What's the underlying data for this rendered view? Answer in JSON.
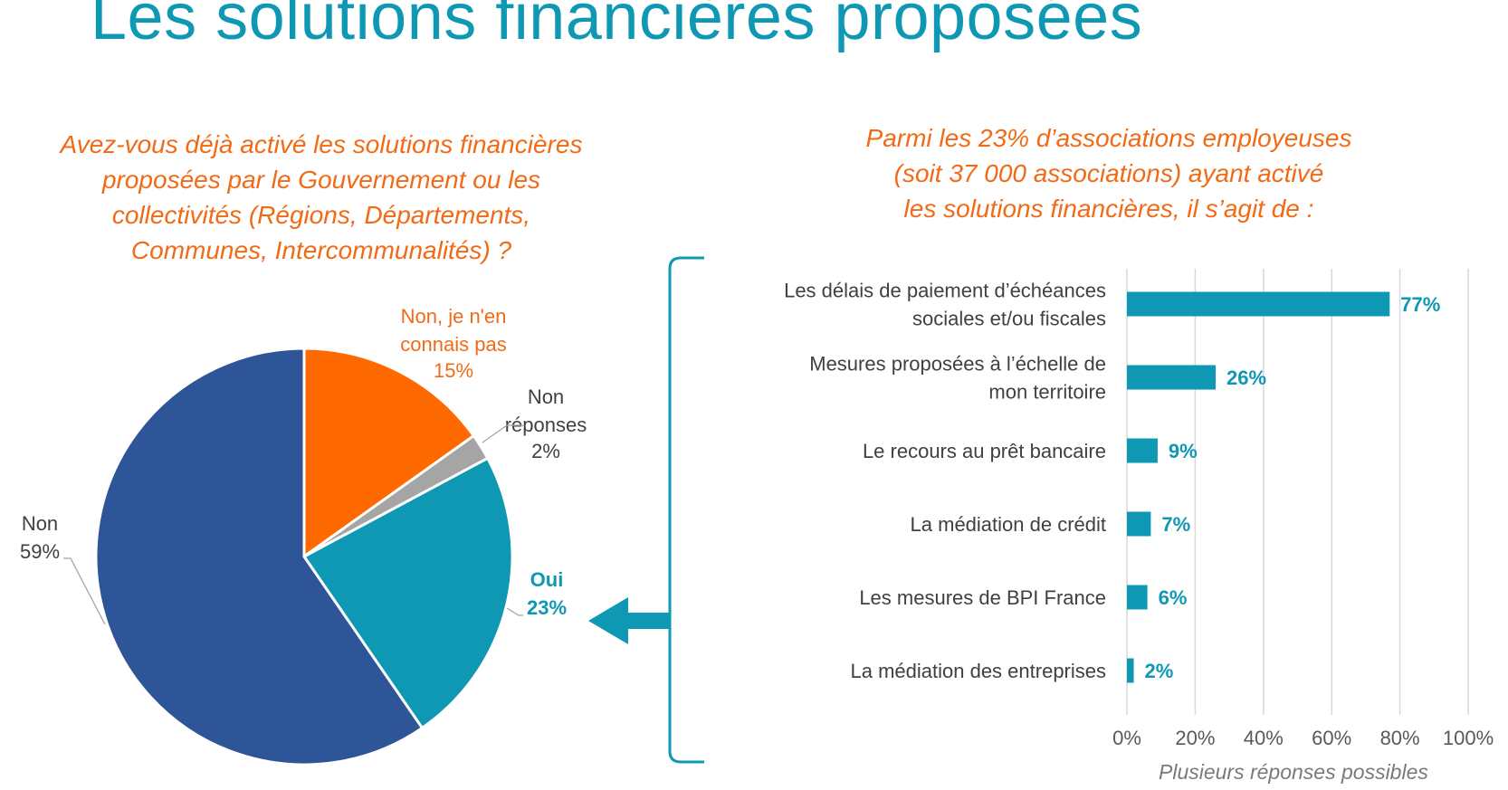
{
  "page": {
    "title": "Les solutions financières proposées",
    "left_question": [
      "Avez-vous déjà activé les solutions financières",
      "proposées par le Gouvernement ou les",
      "collectivités (Régions, Départements,",
      "Communes, Intercommunalités) ?"
    ],
    "right_question": [
      "Parmi les 23% d’associations employeuses",
      "(soit 37 000 associations) ayant activé",
      "les solutions financières, il s’agit de :"
    ],
    "note": "Plusieurs réponses possibles"
  },
  "colors": {
    "title": "#0e98b4",
    "question": "#f26a16",
    "teal": "#0e98b4",
    "navy": "#2e5597",
    "orange": "#ff6a00",
    "gray": "#a5a5a5",
    "text": "#404040"
  },
  "chart_data": [
    {
      "type": "pie",
      "slices": [
        {
          "name": "Non, je n'en connais pas",
          "label_lines": [
            "Non, je n'en",
            "connais pas"
          ],
          "pct_label": "15%",
          "value": 15,
          "color": "#ff6a00"
        },
        {
          "name": "Non réponses",
          "label_lines": [
            "Non",
            "réponses"
          ],
          "pct_label": "2%",
          "value": 2,
          "color": "#a5a5a5"
        },
        {
          "name": "Oui",
          "label_lines": [
            "Oui"
          ],
          "pct_label": "23%",
          "value": 23,
          "color": "#0e98b4"
        },
        {
          "name": "Non",
          "label_lines": [
            "Non"
          ],
          "pct_label": "59%",
          "value": 59,
          "color": "#2e5597"
        }
      ]
    },
    {
      "type": "bar",
      "orientation": "horizontal",
      "categories": [
        [
          "Les délais de paiement d’échéances",
          "sociales et/ou fiscales"
        ],
        [
          "Mesures proposées à l’échelle de",
          "mon territoire"
        ],
        [
          "Le recours au prêt bancaire"
        ],
        [
          "La médiation de crédit"
        ],
        [
          "Les mesures de BPI France"
        ],
        [
          "La médiation des entreprises"
        ]
      ],
      "values": [
        77,
        26,
        9,
        7,
        6,
        2
      ],
      "value_labels": [
        "77%",
        "26%",
        "9%",
        "7%",
        "6%",
        "2%"
      ],
      "xlim": [
        0,
        100
      ],
      "xticks": [
        "0%",
        "20%",
        "40%",
        "60%",
        "80%",
        "100%"
      ],
      "grid": true,
      "color": "#0e98b4"
    }
  ]
}
